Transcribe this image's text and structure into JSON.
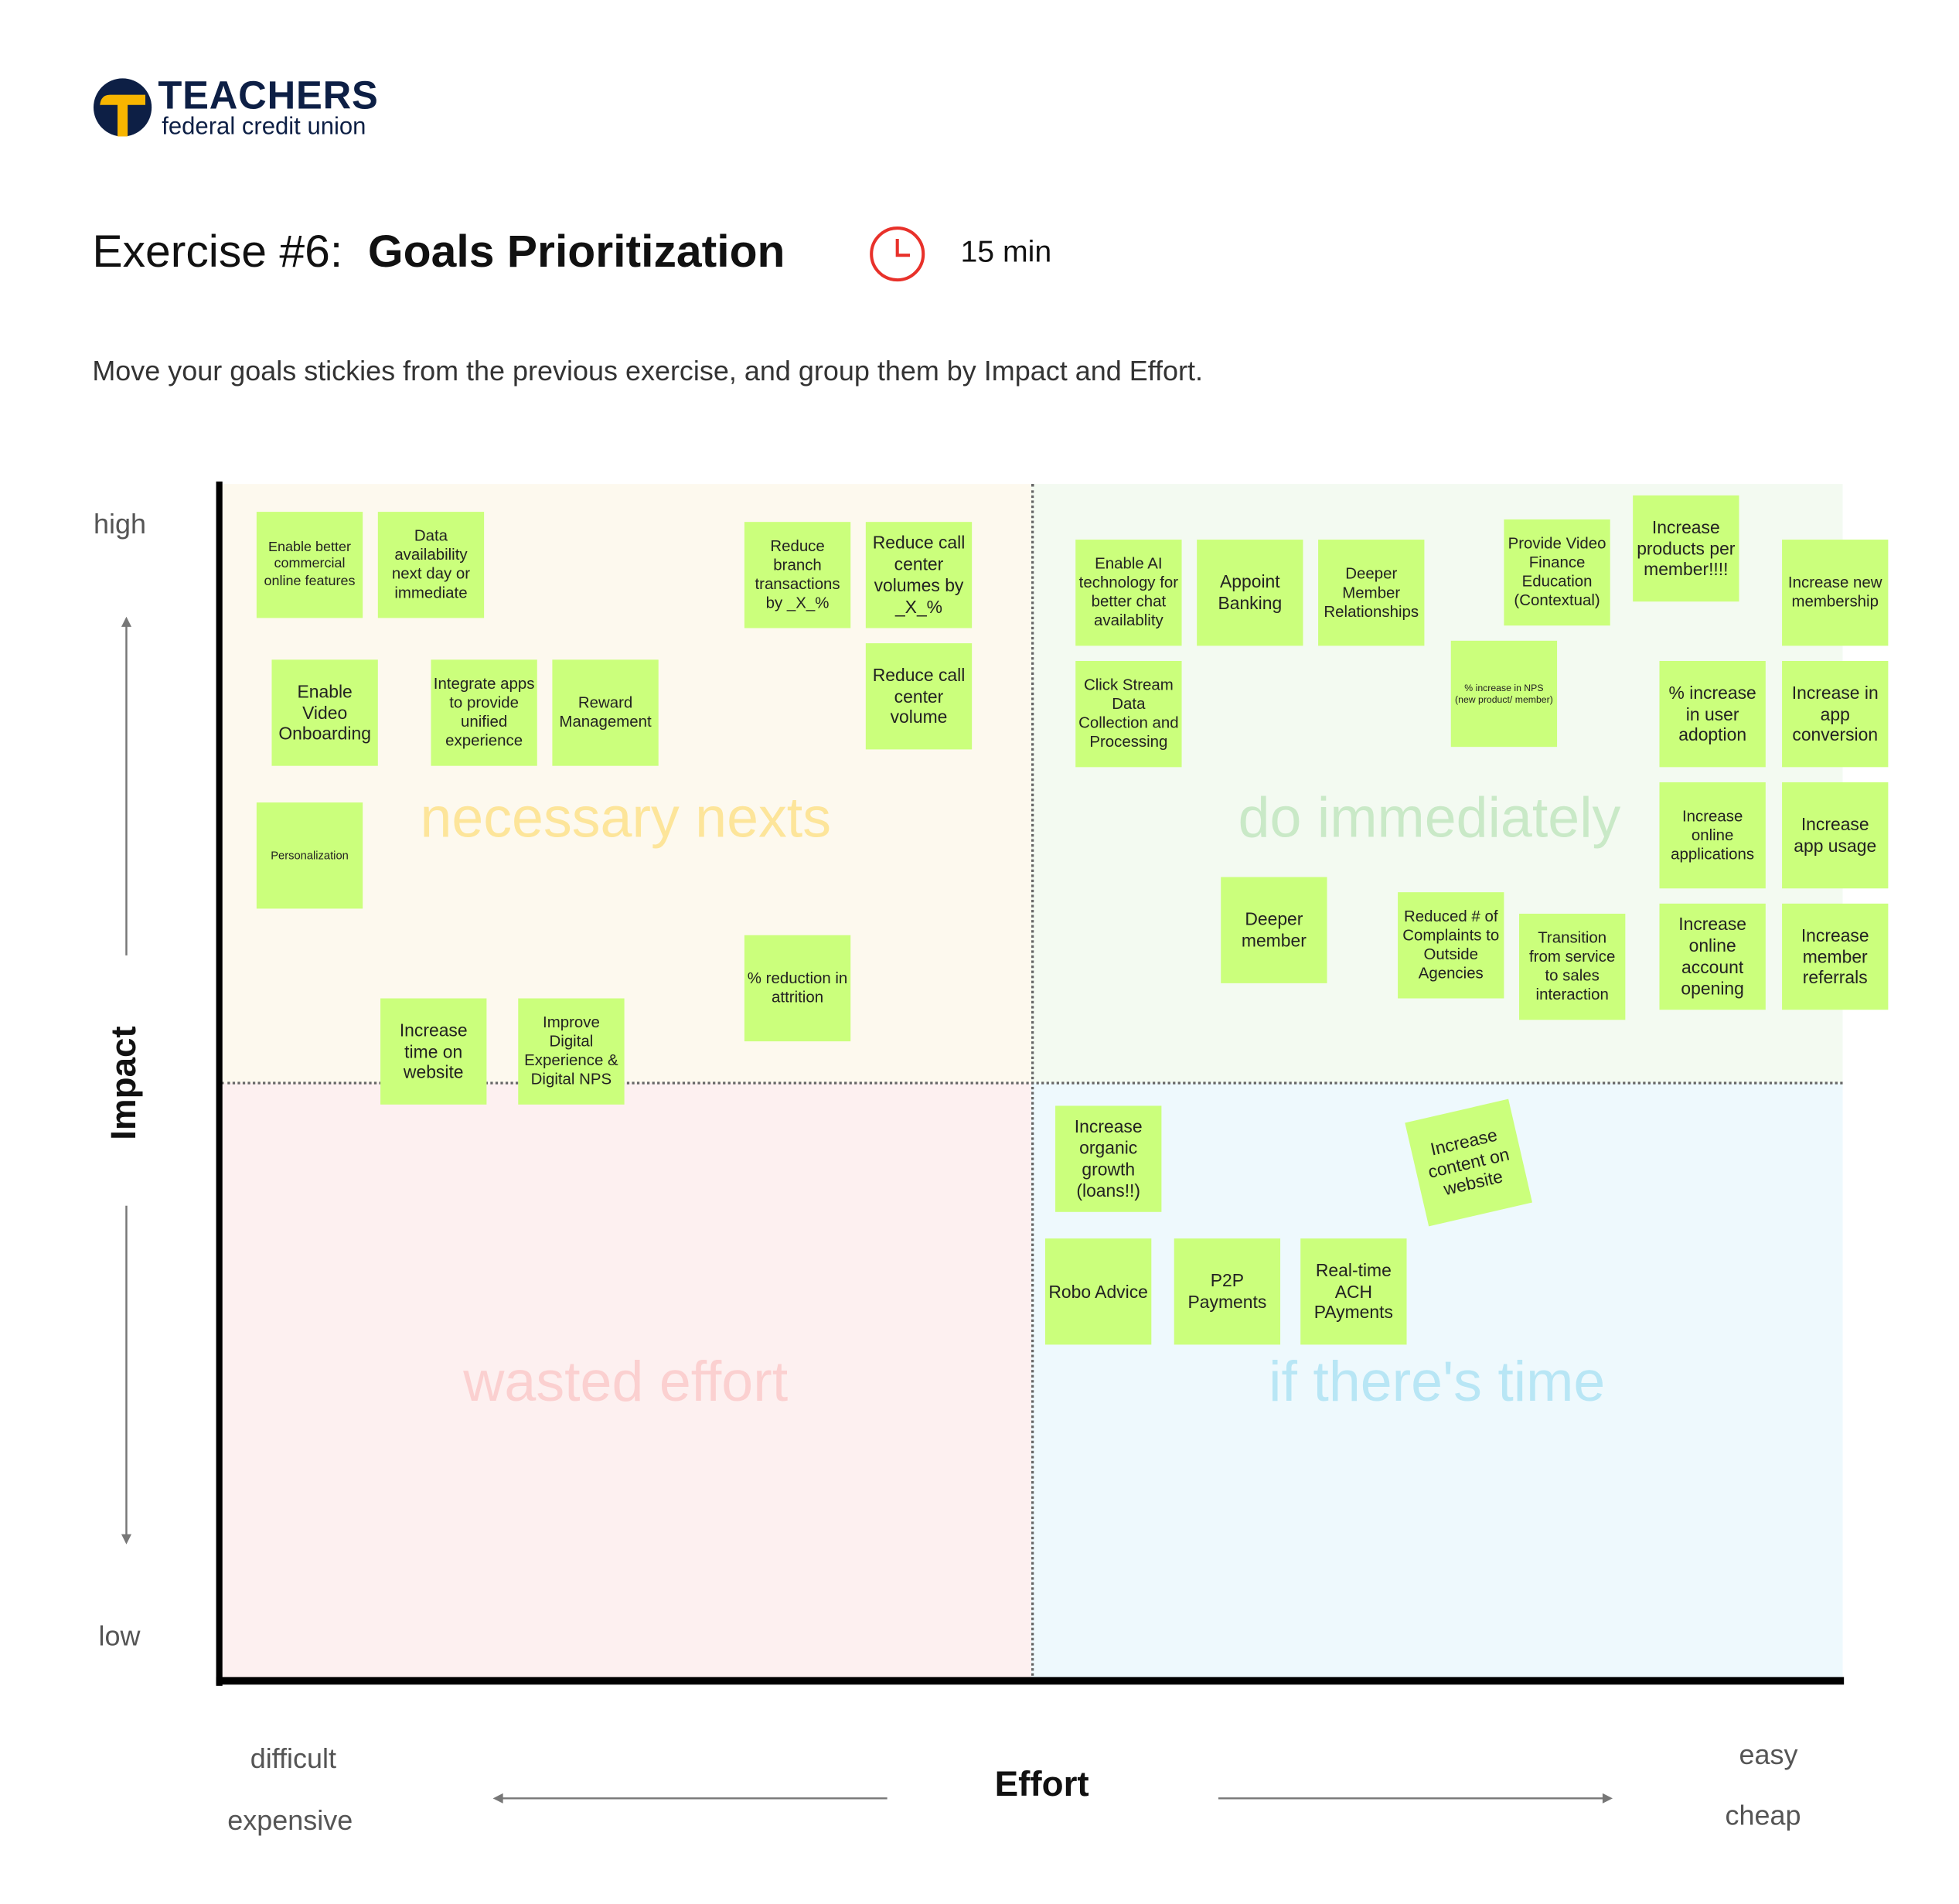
{
  "brand": {
    "name": "TEACHERS",
    "sub": "federal credit union",
    "colors": {
      "navy": "#0d1f45",
      "gold": "#f7b500"
    }
  },
  "header": {
    "title_prefix": "Exercise #6:",
    "title_main": "Goals Prioritization",
    "timer_icon": "clock-icon",
    "timer": "15 min",
    "subtitle": "Move your goals stickies from the previous exercise, and group them by Impact and Effort."
  },
  "axes": {
    "impact": "Impact",
    "high": "high",
    "low": "low",
    "effort": "Effort",
    "difficult": "difficult",
    "expensive": "expensive",
    "easy": "easy",
    "cheap": "cheap"
  },
  "quadrants": {
    "necessary": "necessary nexts",
    "immediately": "do immediately",
    "wasted": "wasted effort",
    "time": "if there's time"
  },
  "colors": {
    "sticky": "#cbff7c",
    "clock": "#e8312a"
  },
  "stickies": [
    "Enable better commercial online features",
    "Data availability next day or immediate",
    "Reduce branch transactions by _X_%",
    "Reduce call center volumes by _X_%",
    "Enable Video Onboarding",
    "Integrate apps to provide unified experience",
    "Reward Management",
    "Reduce call center volume",
    "Personalization",
    "% reduction in attrition",
    "Increase time on website",
    "Improve Digital Experience & Digital NPS",
    "Enable AI technology for better chat availablity",
    "Appoint Banking",
    "Deeper Member Relationships",
    "Provide Video Finance Education (Contextual)",
    "Increase products per member!!!!",
    "Increase new membership",
    "Click Stream Data Collection and Processing",
    "% increase in NPS (new product/ member)",
    "% increase in user adoption",
    "Increase in app conversion",
    "Increase online applications",
    "Increase app usage",
    "Deeper member",
    "Reduced # of Complaints to Outside Agencies",
    "Transition from service to sales interaction",
    "Increase online account opening",
    "Increase member referrals",
    "Increase organic growth (loans!!)",
    "Increase content on website",
    "Robo Advice",
    "P2P Payments",
    "Real-time ACH PAyments"
  ]
}
